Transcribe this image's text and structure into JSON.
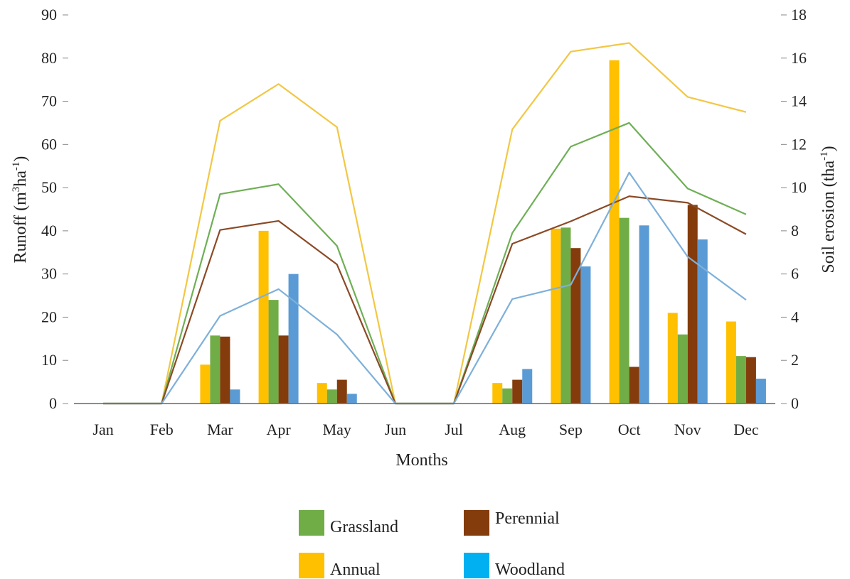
{
  "chart_data": {
    "type": "bar",
    "categories": [
      "Jan",
      "Feb",
      "Mar",
      "Apr",
      "May",
      "Jun",
      "Jul",
      "Aug",
      "Sep",
      "Oct",
      "Nov",
      "Dec"
    ],
    "xlabel": "Months",
    "ylabel_left": "Runoff (m³ha⁻¹)",
    "ylabel_left_parts": [
      "Runoff (m",
      "3",
      "ha",
      "-1",
      ")"
    ],
    "ylabel_right": "Soil erosion (tha⁻¹)",
    "ylabel_right_parts": [
      "Soil erosion (tha",
      "-1",
      ")"
    ],
    "ylim_left": [
      0,
      90
    ],
    "yticks_left": [
      0,
      10,
      20,
      30,
      40,
      50,
      60,
      70,
      80,
      90
    ],
    "ylim_right": [
      0,
      18
    ],
    "yticks_right": [
      0,
      2,
      4,
      6,
      8,
      10,
      12,
      14,
      16,
      18
    ],
    "colors": {
      "Annual": "#FFC000",
      "Grassland": "#70AD47",
      "Perennial": "#843C0C",
      "Woodland": "#5B9BD5",
      "line_Annual": "#F2C744",
      "line_Grassland": "#6FAF56",
      "line_Perennial": "#8B4A26",
      "line_Woodland": "#7EB0DA"
    },
    "bar_series": [
      {
        "name": "Annual",
        "axis": "right",
        "values": [
          0,
          0,
          1.8,
          8.0,
          0.95,
          0,
          0,
          0.95,
          8.1,
          15.9,
          4.2,
          3.8
        ]
      },
      {
        "name": "Grassland",
        "axis": "right",
        "values": [
          0,
          0,
          3.15,
          4.8,
          0.65,
          0,
          0,
          0.7,
          8.15,
          8.6,
          3.2,
          2.2
        ]
      },
      {
        "name": "Perennial",
        "axis": "right",
        "values": [
          0,
          0,
          3.1,
          3.15,
          1.1,
          0,
          0,
          1.1,
          7.2,
          1.7,
          9.2,
          2.15
        ]
      },
      {
        "name": "Woodland",
        "axis": "right",
        "values": [
          0,
          0,
          0.65,
          6.0,
          0.45,
          0,
          0,
          1.6,
          6.35,
          8.25,
          7.6,
          1.15
        ]
      }
    ],
    "line_series": [
      {
        "name": "Annual",
        "axis": "left",
        "values": [
          0,
          0,
          65.5,
          74,
          64,
          0,
          0,
          63.5,
          81.5,
          83.5,
          71,
          67.5
        ]
      },
      {
        "name": "Grassland",
        "axis": "left",
        "values": [
          0,
          0,
          48.5,
          50.8,
          36.5,
          0,
          0,
          39.5,
          59.5,
          65,
          49.8,
          43.8
        ]
      },
      {
        "name": "Perennial",
        "axis": "left",
        "values": [
          0,
          0,
          40.2,
          42.3,
          32.2,
          0,
          0,
          37,
          42.2,
          48,
          46.5,
          39.2
        ]
      },
      {
        "name": "Woodland",
        "axis": "left",
        "values": [
          0,
          0,
          20.3,
          26.5,
          16,
          0,
          0,
          24.2,
          27.5,
          53.5,
          34,
          24
        ]
      }
    ],
    "legend": {
      "placement": "bottom",
      "items": [
        {
          "label": "Grassland",
          "color": "#70AD47"
        },
        {
          "label": "Perennial",
          "color": "#843C0C"
        },
        {
          "label": "Annual",
          "color": "#FFC000"
        },
        {
          "label": "Woodland",
          "color": "#00B0F0"
        }
      ]
    },
    "grid": false
  }
}
